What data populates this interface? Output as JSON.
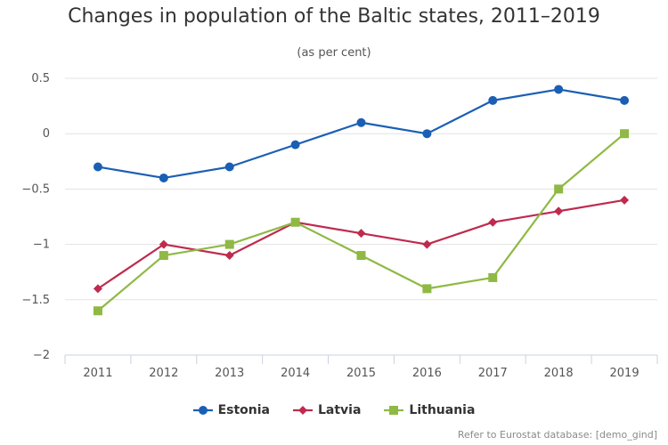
{
  "chart_data": {
    "type": "line",
    "title": "Changes in population of the Baltic states, 2011–2019",
    "subtitle": "(as per cent)",
    "xlabel": "",
    "ylabel": "",
    "categories": [
      "2011",
      "2012",
      "2013",
      "2014",
      "2015",
      "2016",
      "2017",
      "2018",
      "2019"
    ],
    "ylim": [
      -2,
      0.5
    ],
    "yticks": [
      0.5,
      0,
      -0.5,
      -1,
      -1.5,
      -2
    ],
    "ytick_labels": [
      "0.5",
      "0",
      "−0.5",
      "−1",
      "−1.5",
      "−2"
    ],
    "grid": true,
    "legend_position": "bottom",
    "series": [
      {
        "name": "Estonia",
        "color": "#1b5fb4",
        "marker": "circle",
        "values": [
          -0.3,
          -0.4,
          -0.3,
          -0.1,
          0.1,
          0.0,
          0.3,
          0.4,
          0.3
        ]
      },
      {
        "name": "Latvia",
        "color": "#bf2a4e",
        "marker": "diamond",
        "values": [
          -1.4,
          -1.0,
          -1.1,
          -0.8,
          -0.9,
          -1.0,
          -0.8,
          -0.7,
          -0.6
        ]
      },
      {
        "name": "Lithuania",
        "color": "#8fb944",
        "marker": "square",
        "values": [
          -1.6,
          -1.1,
          -1.0,
          -0.8,
          -1.1,
          -1.4,
          -1.3,
          -0.5,
          0.0
        ]
      }
    ]
  },
  "footer": {
    "source_note": "Refer to Eurostat database: [demo_gind]"
  }
}
